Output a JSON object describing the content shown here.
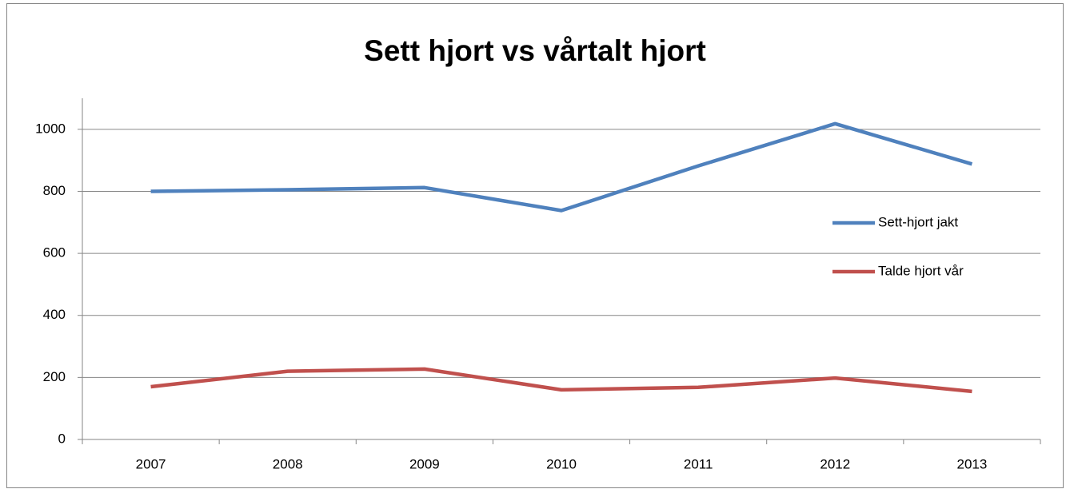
{
  "chart_data": {
    "type": "line",
    "title": "Sett hjort vs vårtalt hjort",
    "categories": [
      "2007",
      "2008",
      "2009",
      "2010",
      "2011",
      "2012",
      "2013"
    ],
    "series": [
      {
        "name": "Sett-hjort jakt",
        "color": "#4f81bd",
        "values": [
          800,
          805,
          812,
          738,
          882,
          1018,
          888
        ]
      },
      {
        "name": "Talde hjort vår",
        "color": "#c0504d",
        "values": [
          170,
          220,
          227,
          160,
          168,
          198,
          155
        ]
      }
    ],
    "ylim": [
      0,
      1100
    ],
    "yticks": [
      0,
      200,
      400,
      600,
      800,
      1000
    ],
    "grid": true,
    "legend": "right"
  }
}
